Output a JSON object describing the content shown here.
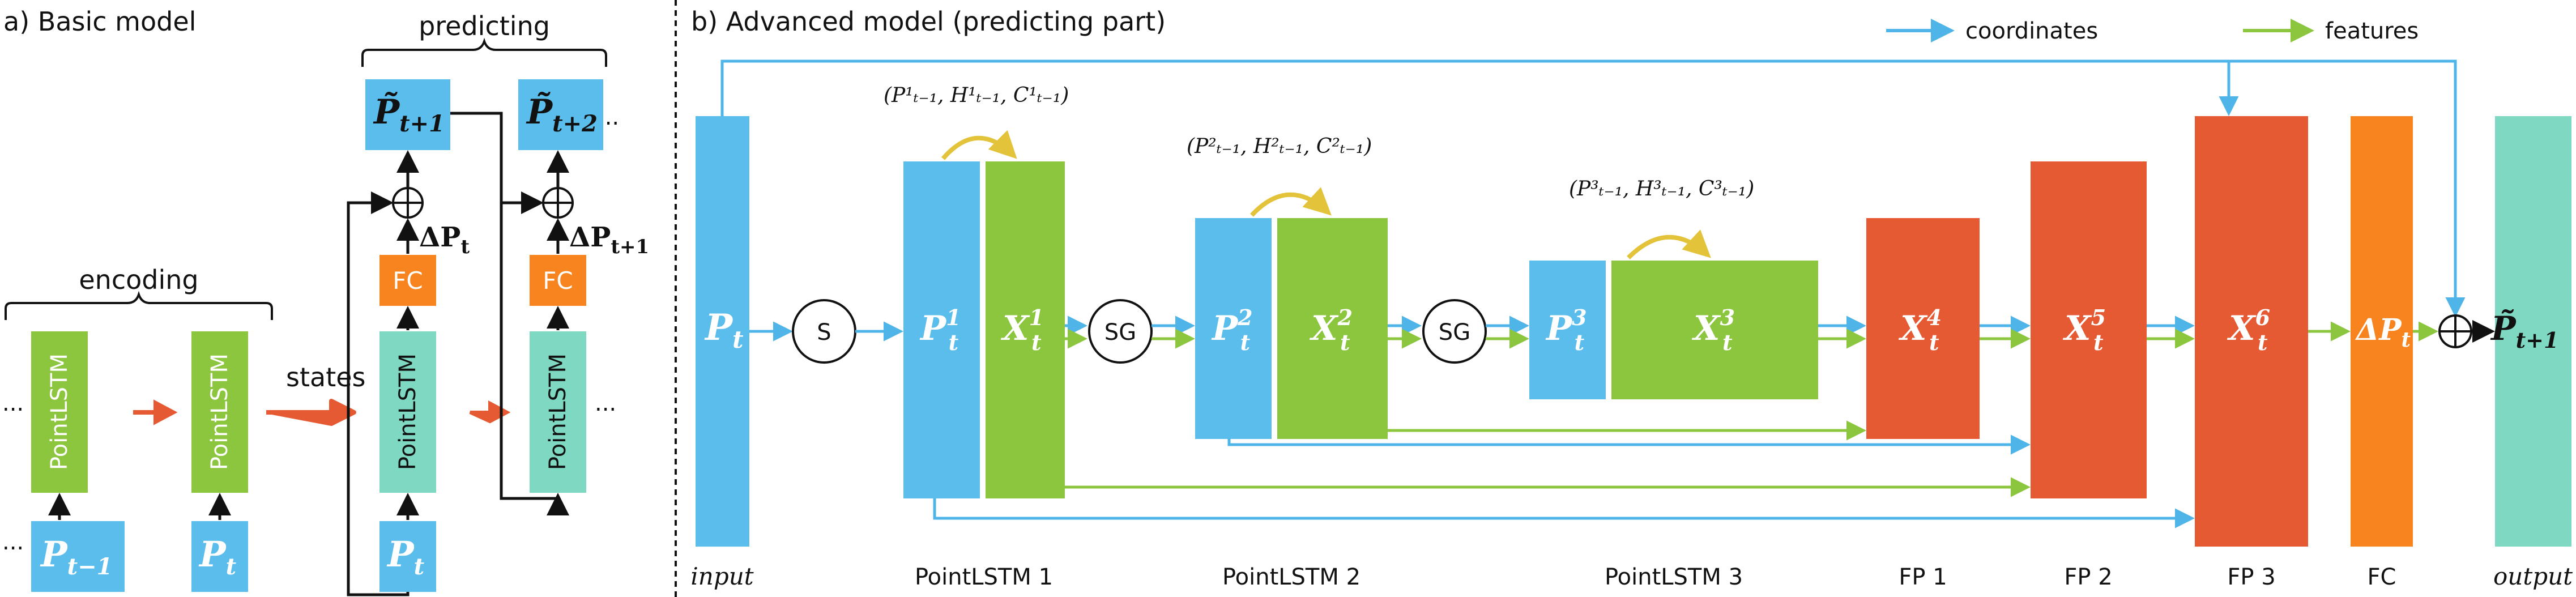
{
  "panel_a": {
    "title": "a) Basic model",
    "encoding_label": "encoding",
    "predicting_label": "predicting",
    "states_label": "states",
    "ellipsis": "...",
    "cells": [
      "PointLSTM",
      "PointLSTM",
      "PointLSTM",
      "PointLSTM"
    ],
    "fc": "FC",
    "inputs": [
      "P",
      "P",
      "P"
    ],
    "input_subs": [
      "t−1",
      "t",
      "t"
    ],
    "outputs": [
      "P̃",
      "P̃"
    ],
    "output_subs": [
      "t+1",
      "t+2"
    ],
    "plus": "⊕",
    "delta_labels": [
      "ΔP",
      "ΔP"
    ],
    "delta_subs": [
      "t",
      "t+1"
    ]
  },
  "panel_b": {
    "title": "b) Advanced model (predicting part)",
    "legend": [
      {
        "label": "coordinates",
        "color": "#4fb4e8"
      },
      {
        "label": "features",
        "color": "#8cc63e"
      }
    ],
    "input_block": {
      "main": "P",
      "sub": "t"
    },
    "ops": [
      "S",
      "SG",
      "SG"
    ],
    "states": [
      {
        "sup": "1",
        "text": "(P¹ₜ₋₁, H¹ₜ₋₁, C¹ₜ₋₁)"
      },
      {
        "sup": "2",
        "text": "(P²ₜ₋₁, H²ₜ₋₁, C²ₜ₋₁)"
      },
      {
        "sup": "3",
        "text": "(P³ₜ₋₁, H³ₜ₋₁, C³ₜ₋₁)"
      }
    ],
    "lstm_blocks": [
      {
        "p": "P",
        "x": "X",
        "sup": "1",
        "sub": "t"
      },
      {
        "p": "P",
        "x": "X",
        "sup": "2",
        "sub": "t"
      },
      {
        "p": "P",
        "x": "X",
        "sup": "3",
        "sub": "t"
      }
    ],
    "fp_blocks": [
      {
        "x": "X",
        "sup": "4",
        "sub": "t"
      },
      {
        "x": "X",
        "sup": "5",
        "sub": "t"
      },
      {
        "x": "X",
        "sup": "6",
        "sub": "t"
      }
    ],
    "fc_block": {
      "main": "ΔP",
      "sub": "t"
    },
    "output": {
      "main": "P̃",
      "sub": "t+1"
    },
    "plus": "⊕",
    "bottom_labels": [
      "input",
      "PointLSTM 1",
      "PointLSTM 2",
      "PointLSTM 3",
      "FP 1",
      "FP 2",
      "FP 3",
      "FC",
      "output"
    ]
  },
  "colors": {
    "blue": "#5bbdec",
    "green": "#8cc63e",
    "teal": "#7fd9c2",
    "orange": "#f7841f",
    "red": "#e65a33",
    "gold": "#e3c33a",
    "arrow_blue": "#4fb4e8",
    "arrow_green": "#8cc63e"
  }
}
